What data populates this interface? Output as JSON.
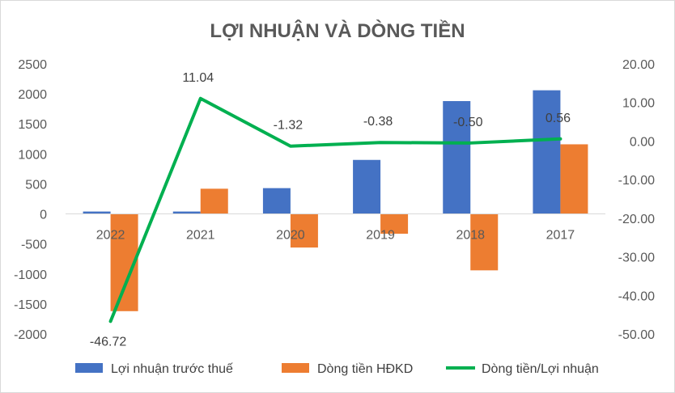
{
  "chart_data": {
    "type": "bar",
    "title": "LỢI NHUẬN VÀ DÒNG TIỀN",
    "categories": [
      "2022",
      "2021",
      "2020",
      "2019",
      "2018",
      "2017"
    ],
    "series": [
      {
        "name": "Lợi nhuận trước thuế",
        "type": "bar",
        "axis": "left",
        "color": "#4472C4",
        "values": [
          40,
          40,
          430,
          900,
          1880,
          2060
        ]
      },
      {
        "name": "Dòng tiền HĐKD",
        "type": "bar",
        "axis": "left",
        "color": "#ED7D31",
        "values": [
          -1620,
          420,
          -560,
          -330,
          -940,
          1160
        ]
      },
      {
        "name": "Dòng tiền/Lợi nhuận",
        "type": "line",
        "axis": "right",
        "color": "#00B050",
        "values": [
          -46.72,
          11.04,
          -1.32,
          -0.38,
          -0.5,
          0.56
        ],
        "labels": [
          "-46.72",
          "11.04",
          "-1.32",
          "-0.38",
          "-0.50",
          "0.56"
        ]
      }
    ],
    "y_left": {
      "lim": [
        -2000,
        2500
      ],
      "ticks": [
        "2500",
        "2000",
        "1500",
        "1000",
        "500",
        "0",
        "-500",
        "-1000",
        "-1500",
        "-2000"
      ]
    },
    "y_right": {
      "lim": [
        -50,
        20
      ],
      "ticks": [
        "20.00",
        "10.00",
        "0.00",
        "-10.00",
        "-20.00",
        "-30.00",
        "-40.00",
        "-50.00"
      ]
    },
    "grid": false,
    "legend_position": "bottom"
  }
}
